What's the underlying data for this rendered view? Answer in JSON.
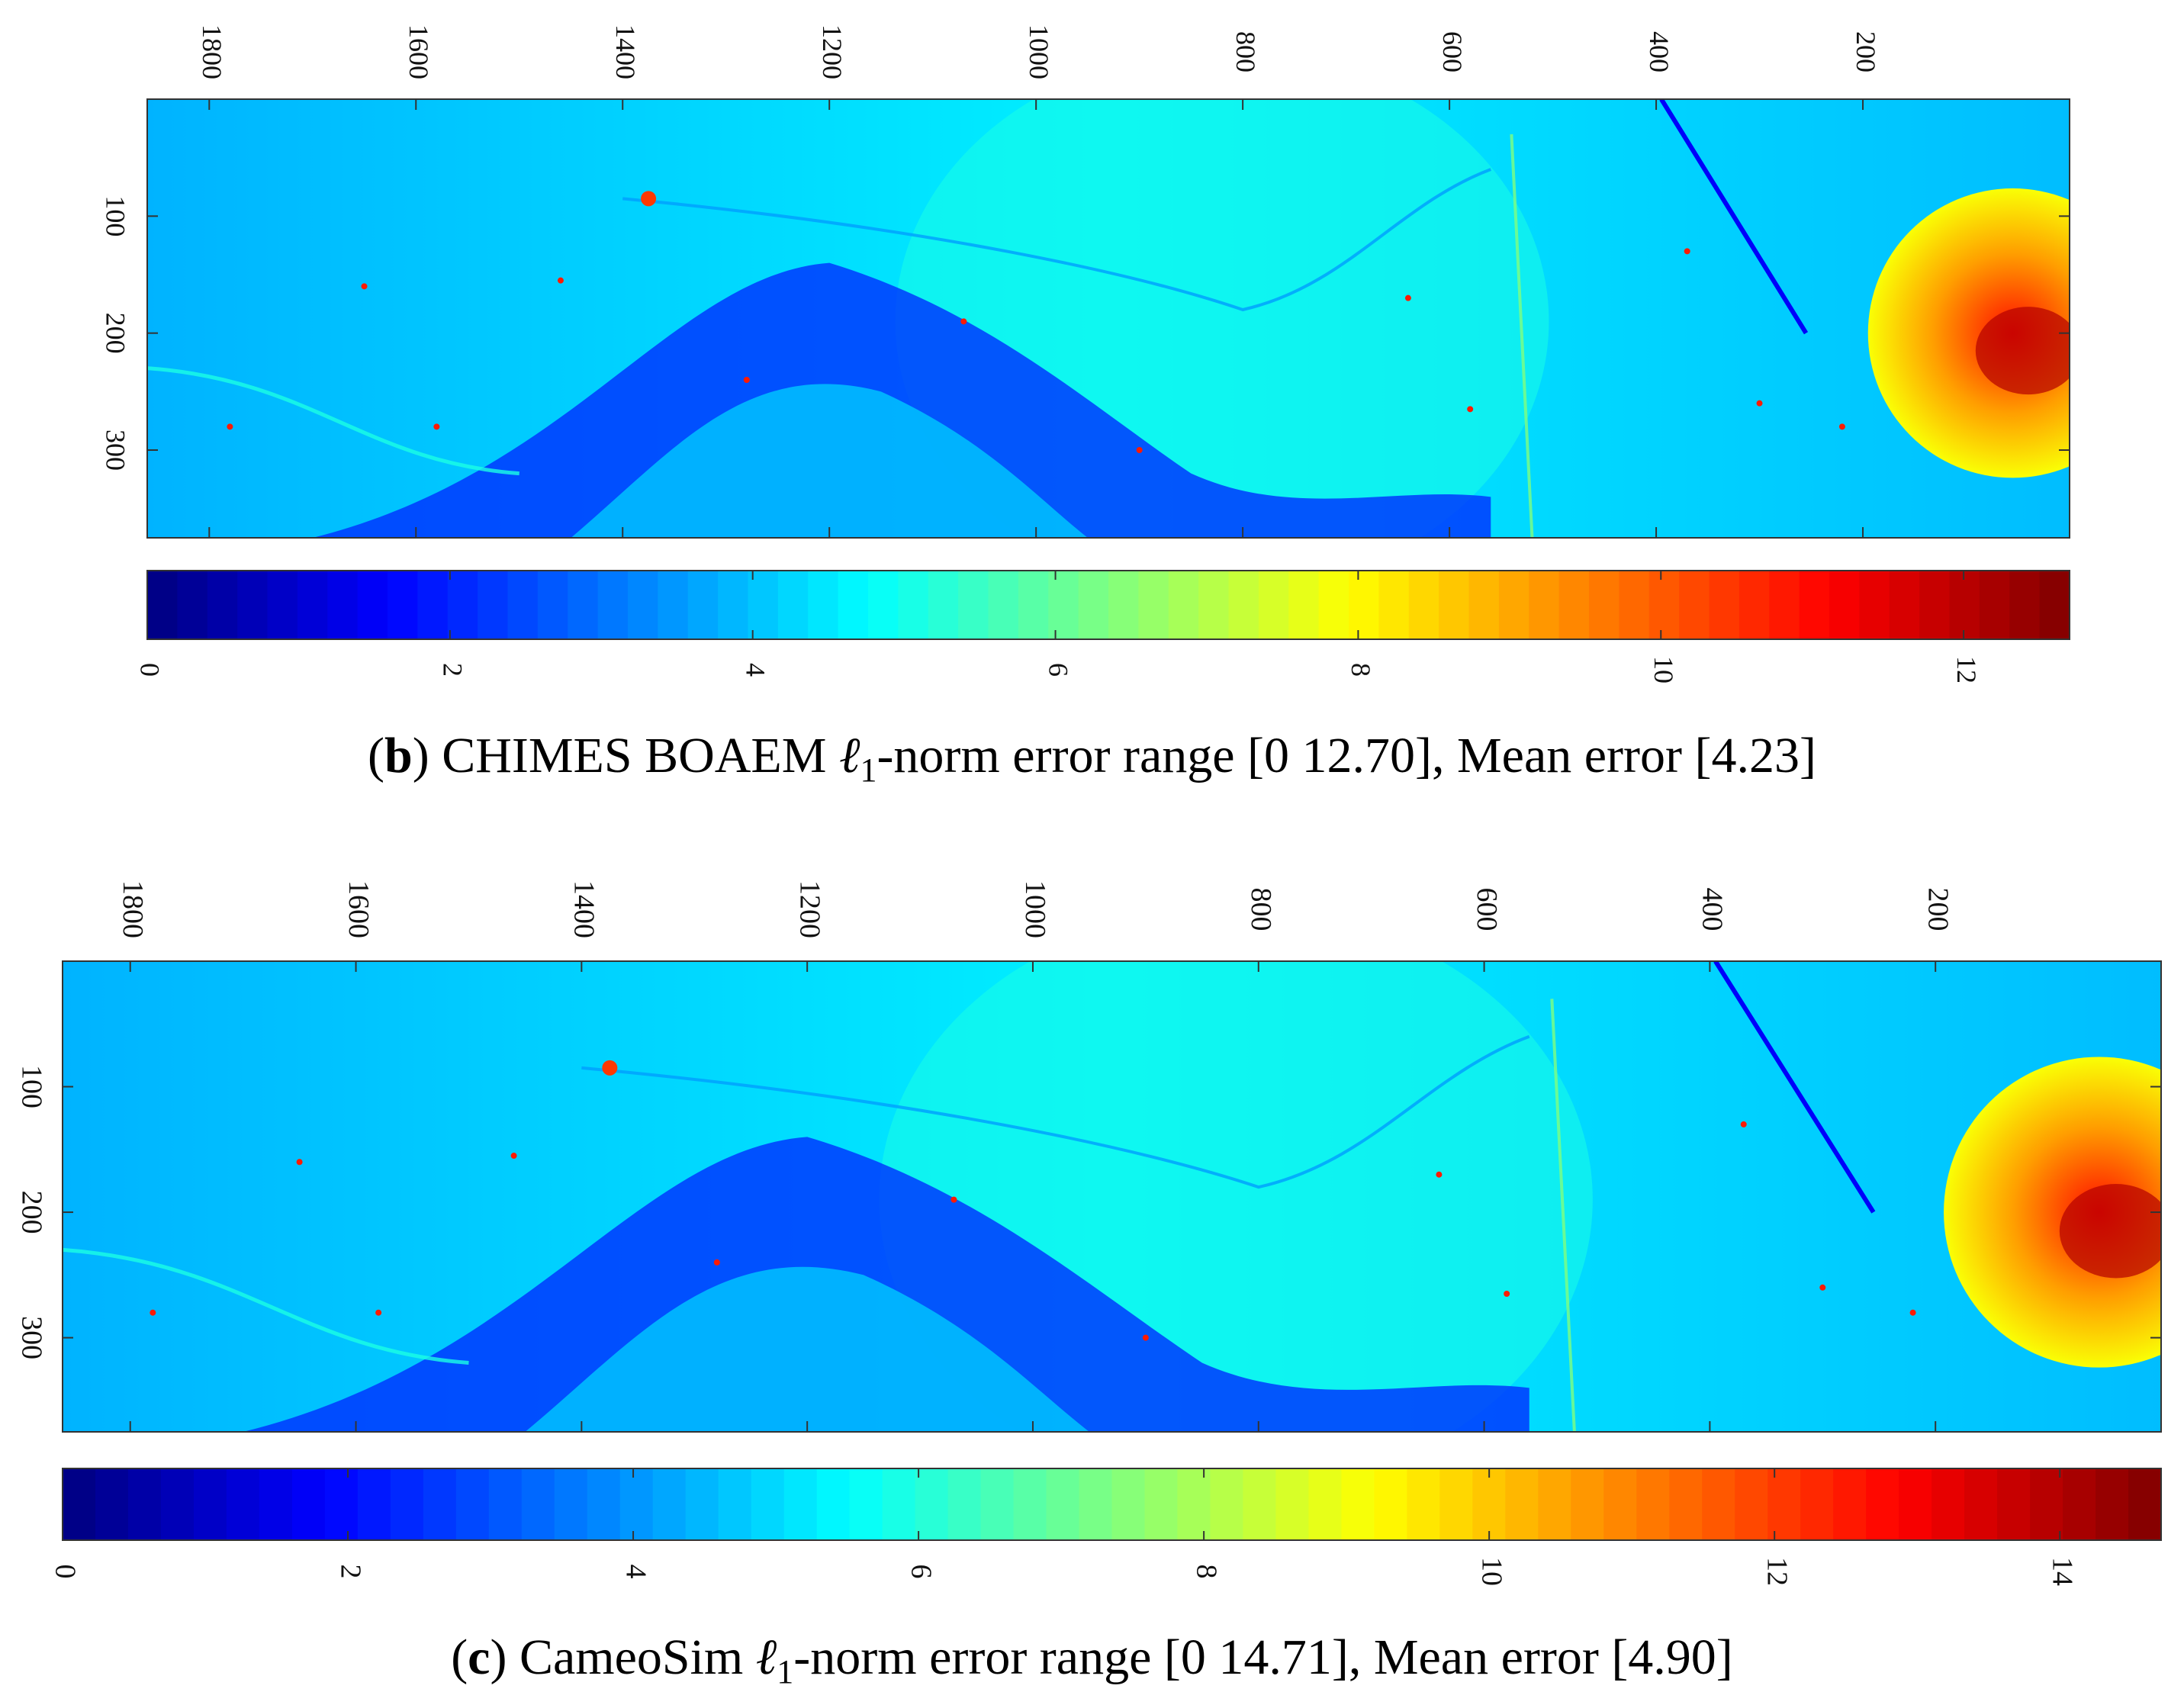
{
  "chart_data": [
    {
      "type": "heatmap",
      "panel": "b",
      "title_prefix": "(",
      "panel_letter": "b",
      "title_text": ") CHIMES BOAEM ",
      "title_symbol": "ℓ",
      "title_subscript": "1",
      "title_rest": "-norm error range [0 12.70], Mean error [4.23]",
      "x_ticks": [
        "1800",
        "1600",
        "1400",
        "1200",
        "1000",
        "800",
        "600",
        "400",
        "200"
      ],
      "x_tick_values": [
        1800,
        1600,
        1400,
        1200,
        1000,
        800,
        600,
        400,
        200
      ],
      "x_range": [
        1860,
        0
      ],
      "y_ticks": [
        "100",
        "200",
        "300"
      ],
      "y_tick_values": [
        100,
        200,
        300
      ],
      "y_range": [
        0,
        375
      ],
      "colorbar_ticks": [
        "0",
        "2",
        "4",
        "6",
        "8",
        "10",
        "12"
      ],
      "colorbar_tick_values": [
        0,
        2,
        4,
        6,
        8,
        10,
        12
      ],
      "colorbar_range": [
        0,
        12.7
      ],
      "error_min": 0,
      "error_max": 12.7,
      "mean_error": 4.23,
      "colormap": "jet"
    },
    {
      "type": "heatmap",
      "panel": "c",
      "title_prefix": "(",
      "panel_letter": "c",
      "title_text": ") CameoSim ",
      "title_symbol": "ℓ",
      "title_subscript": "1",
      "title_rest": "-norm error range [0 14.71], Mean error [4.90]",
      "x_ticks": [
        "1800",
        "1600",
        "1400",
        "1200",
        "1000",
        "800",
        "600",
        "400",
        "200"
      ],
      "x_tick_values": [
        1800,
        1600,
        1400,
        1200,
        1000,
        800,
        600,
        400,
        200
      ],
      "x_range": [
        1860,
        0
      ],
      "y_ticks": [
        "100",
        "200",
        "300"
      ],
      "y_tick_values": [
        100,
        200,
        300
      ],
      "y_range": [
        0,
        375
      ],
      "colorbar_ticks": [
        "0",
        "2",
        "4",
        "6",
        "8",
        "10",
        "12",
        "14"
      ],
      "colorbar_tick_values": [
        0,
        2,
        4,
        6,
        8,
        10,
        12,
        14
      ],
      "colorbar_range": [
        0,
        14.71
      ],
      "error_min": 0,
      "error_max": 14.71,
      "mean_error": 4.9,
      "colormap": "jet"
    }
  ]
}
